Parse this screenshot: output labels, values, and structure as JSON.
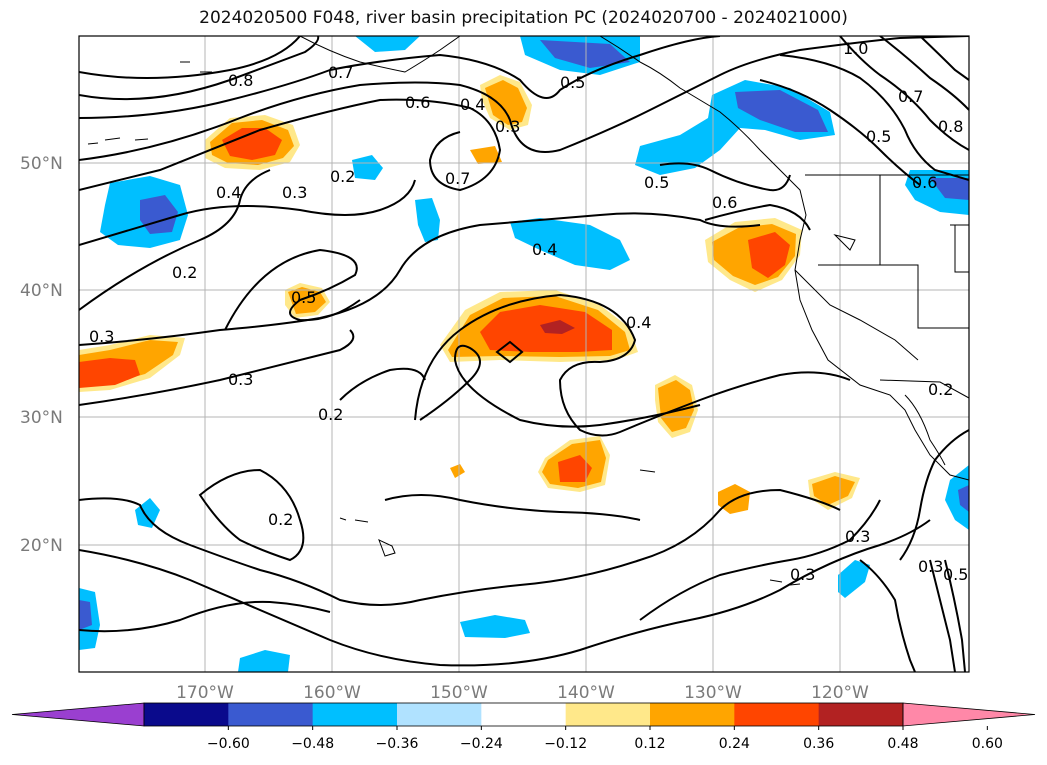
{
  "title": "2024020500 F048, river basin precipitation PC (2024020700 - 2024021000)",
  "lat_labels": [
    "50°N",
    "40°N",
    "30°N",
    "20°N"
  ],
  "lon_labels": [
    "170°W",
    "160°W",
    "150°W",
    "140°W",
    "130°W",
    "120°W"
  ],
  "contour_labels": [
    "0.8",
    "0.7",
    "0.6",
    "0.4",
    "0.3",
    "0.2",
    "0.7",
    "0.5",
    "0.5",
    "0.6",
    "1.0",
    "0.7",
    "0.5",
    "0.8",
    "0.6",
    "0.4",
    "0.2",
    "0.3",
    "0.3",
    "0.5",
    "0.4",
    "0.3",
    "0.2",
    "0.2",
    "0.3",
    "0.3",
    "0.4",
    "0.5",
    "0.2",
    "0.3"
  ],
  "colorbar": {
    "ticks": [
      "−0.60",
      "−0.48",
      "−0.36",
      "−0.24",
      "−0.12",
      "0.12",
      "0.24",
      "0.36",
      "0.48",
      "0.60"
    ],
    "colors": [
      "#9a3fd0",
      "#0a0a8c",
      "#3a5ad0",
      "#00bfff",
      "#b0e2ff",
      "#ffffff",
      "#ffe88a",
      "#ffa500",
      "#ff4500",
      "#b22222",
      "#ff88a8"
    ]
  }
}
